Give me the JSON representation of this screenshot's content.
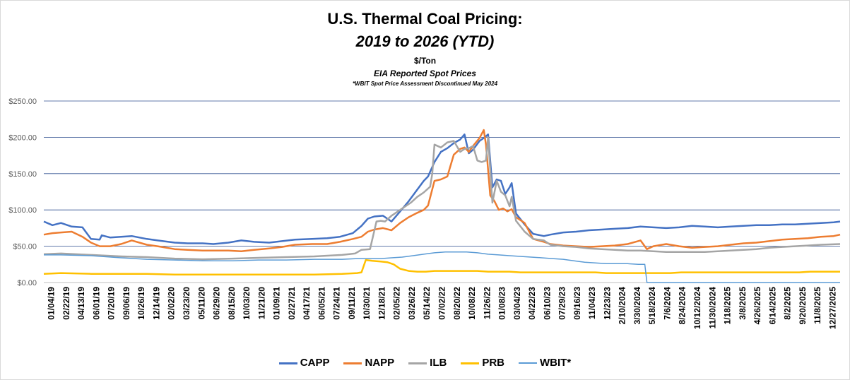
{
  "chart_data": {
    "type": "line",
    "title": "U.S. Thermal Coal Pricing:",
    "subtitle": "2019 to 2026 (YTD)",
    "unit": "$/Ton",
    "source_note": "EIA Reported Spot Prices",
    "footnote": "*WBIT Spot Price Assessment Discontinued May 2024",
    "ylim": [
      0,
      250
    ],
    "yticks": [
      "$0.00",
      "$50.00",
      "$100.00",
      "$150.00",
      "$200.00",
      "$250.00"
    ],
    "grid": true,
    "legend_position": "bottom",
    "xlim": [
      "2019-01-04",
      "2026-02-13"
    ],
    "x_tick_labels": [
      "01/04/19",
      "02/22/19",
      "04/13/19",
      "06/01/19",
      "07/20/19",
      "09/06/19",
      "10/26/19",
      "12/14/19",
      "02/02/20",
      "03/23/20",
      "05/11/20",
      "06/29/20",
      "08/15/20",
      "10/03/20",
      "11/21/20",
      "01/09/21",
      "02/27/21",
      "04/17/21",
      "06/05/21",
      "07/24/21",
      "09/11/21",
      "10/30/21",
      "12/18/21",
      "02/05/22",
      "03/26/22",
      "05/14/22",
      "07/02/22",
      "08/20/22",
      "10/08/22",
      "11/26/22",
      "01/08/23",
      "03/04/23",
      "04/22/23",
      "06/10/23",
      "07/29/23",
      "09/16/23",
      "11/04/23",
      "12/23/23",
      "2/10/2024",
      "3/30/2024",
      "5/18/2024",
      "7/6/2024",
      "8/24/2024",
      "10/12/2024",
      "11/30/2024",
      "1/18/2025",
      "3/8/2025",
      "4/26/2025",
      "6/14/2025",
      "8/2/2025",
      "9/20/2025",
      "11/8/2025",
      "12/27/2025"
    ],
    "series": [
      {
        "name": "CAPP",
        "color": "#4472C4",
        "width": 2.5,
        "x": [
          "2019-01-04",
          "2019-02-01",
          "2019-03-01",
          "2019-04-05",
          "2019-05-10",
          "2019-06-07",
          "2019-07-05",
          "2019-07-12",
          "2019-08-09",
          "2019-09-13",
          "2019-10-18",
          "2019-12-06",
          "2020-01-10",
          "2020-03-06",
          "2020-04-17",
          "2020-06-05",
          "2020-07-10",
          "2020-08-28",
          "2020-10-09",
          "2020-11-20",
          "2021-01-08",
          "2021-02-19",
          "2021-04-02",
          "2021-05-28",
          "2021-07-16",
          "2021-08-27",
          "2021-10-08",
          "2021-11-05",
          "2021-11-26",
          "2021-12-17",
          "2022-01-14",
          "2022-02-11",
          "2022-03-11",
          "2022-04-08",
          "2022-05-06",
          "2022-05-27",
          "2022-06-10",
          "2022-07-01",
          "2022-07-22",
          "2022-08-12",
          "2022-09-02",
          "2022-09-23",
          "2022-10-07",
          "2022-10-21",
          "2022-11-04",
          "2022-11-25",
          "2022-12-09",
          "2022-12-23",
          "2023-01-06",
          "2023-01-20",
          "2023-02-03",
          "2023-02-17",
          "2023-03-03",
          "2023-03-10",
          "2023-03-24",
          "2023-04-21",
          "2023-05-19",
          "2023-06-23",
          "2023-07-14",
          "2023-08-25",
          "2023-10-06",
          "2023-11-17",
          "2023-12-29",
          "2024-02-09",
          "2024-03-22",
          "2024-05-03",
          "2024-06-14",
          "2024-07-26",
          "2024-09-06",
          "2024-10-18",
          "2024-11-29",
          "2025-01-10",
          "2025-02-21",
          "2025-04-04",
          "2025-05-16",
          "2025-06-27",
          "2025-08-08",
          "2025-09-19",
          "2025-10-31",
          "2025-12-12",
          "2026-01-23",
          "2026-02-13"
        ],
        "y": [
          84,
          79,
          82,
          77,
          76,
          60,
          59,
          65,
          62,
          63,
          64,
          60,
          58,
          55,
          54,
          54,
          53,
          55,
          58,
          56,
          55,
          57,
          59,
          60,
          61,
          63,
          68,
          78,
          88,
          91,
          92,
          84,
          98,
          112,
          128,
          140,
          146,
          166,
          180,
          185,
          192,
          197,
          204,
          178,
          183,
          195,
          199,
          204,
          131,
          142,
          140,
          122,
          131,
          137,
          95,
          80,
          67,
          64,
          66,
          69,
          70,
          72,
          73,
          74,
          75,
          77,
          76,
          75,
          76,
          78,
          77,
          76,
          77,
          78,
          79,
          79,
          80,
          80,
          81,
          82,
          83,
          84
        ]
      },
      {
        "name": "NAPP",
        "color": "#ED7D31",
        "width": 2.5,
        "x": [
          "2019-01-04",
          "2019-02-01",
          "2019-03-01",
          "2019-04-05",
          "2019-05-10",
          "2019-06-07",
          "2019-07-05",
          "2019-08-09",
          "2019-09-13",
          "2019-10-18",
          "2019-12-06",
          "2020-01-10",
          "2020-03-06",
          "2020-04-17",
          "2020-06-05",
          "2020-08-28",
          "2020-10-09",
          "2020-11-20",
          "2021-01-08",
          "2021-02-19",
          "2021-04-02",
          "2021-05-28",
          "2021-07-16",
          "2021-08-27",
          "2021-10-08",
          "2021-11-05",
          "2021-11-26",
          "2021-12-17",
          "2022-01-14",
          "2022-02-11",
          "2022-03-11",
          "2022-04-08",
          "2022-05-06",
          "2022-05-27",
          "2022-06-10",
          "2022-07-01",
          "2022-07-22",
          "2022-08-12",
          "2022-09-02",
          "2022-09-23",
          "2022-10-07",
          "2022-10-21",
          "2022-11-04",
          "2022-11-25",
          "2022-12-09",
          "2022-12-16",
          "2022-12-30",
          "2023-01-13",
          "2023-01-27",
          "2023-02-10",
          "2023-02-24",
          "2023-03-10",
          "2023-03-24",
          "2023-04-21",
          "2023-05-19",
          "2023-06-23",
          "2023-07-14",
          "2023-08-25",
          "2023-10-06",
          "2023-11-17",
          "2023-12-29",
          "2024-02-09",
          "2024-03-22",
          "2024-05-03",
          "2024-05-24",
          "2024-06-14",
          "2024-07-26",
          "2024-09-06",
          "2024-10-18",
          "2024-11-29",
          "2025-01-10",
          "2025-02-21",
          "2025-04-04",
          "2025-05-16",
          "2025-06-27",
          "2025-08-08",
          "2025-09-19",
          "2025-10-31",
          "2025-12-12",
          "2026-01-23",
          "2026-02-13"
        ],
        "y": [
          66,
          68,
          69,
          70,
          63,
          55,
          50,
          50,
          53,
          58,
          52,
          50,
          46,
          45,
          44,
          44,
          43,
          45,
          47,
          49,
          52,
          53,
          53,
          56,
          60,
          63,
          70,
          73,
          75,
          72,
          82,
          90,
          96,
          100,
          106,
          140,
          142,
          146,
          176,
          184,
          186,
          180,
          188,
          199,
          210,
          190,
          120,
          112,
          100,
          102,
          98,
          101,
          90,
          82,
          60,
          56,
          53,
          51,
          50,
          49,
          50,
          51,
          53,
          58,
          46,
          50,
          53,
          50,
          48,
          49,
          50,
          52,
          54,
          55,
          57,
          59,
          60,
          61,
          63,
          64,
          66
        ]
      },
      {
        "name": "ILB",
        "color": "#A5A5A5",
        "width": 2.5,
        "x": [
          "2019-01-04",
          "2019-03-01",
          "2019-06-07",
          "2019-09-13",
          "2019-12-06",
          "2020-03-06",
          "2020-06-05",
          "2020-09-11",
          "2020-12-04",
          "2021-03-05",
          "2021-06-04",
          "2021-09-03",
          "2021-10-15",
          "2021-11-05",
          "2021-12-03",
          "2021-12-24",
          "2022-01-07",
          "2022-01-21",
          "2022-02-11",
          "2022-03-04",
          "2022-03-25",
          "2022-04-15",
          "2022-05-06",
          "2022-05-27",
          "2022-06-17",
          "2022-06-24",
          "2022-07-01",
          "2022-07-22",
          "2022-08-12",
          "2022-09-02",
          "2022-09-23",
          "2022-10-07",
          "2022-10-21",
          "2022-11-04",
          "2022-11-18",
          "2022-12-02",
          "2022-12-16",
          "2022-12-23",
          "2023-01-06",
          "2023-01-20",
          "2023-02-03",
          "2023-02-17",
          "2023-03-03",
          "2023-03-10",
          "2023-03-24",
          "2023-04-21",
          "2023-05-19",
          "2023-06-23",
          "2023-07-14",
          "2023-08-25",
          "2023-10-06",
          "2023-11-17",
          "2023-12-29",
          "2024-02-09",
          "2024-03-22",
          "2024-05-03",
          "2024-06-14",
          "2024-07-26",
          "2024-09-06",
          "2024-10-18",
          "2024-11-29",
          "2025-01-10",
          "2025-02-21",
          "2025-04-04",
          "2025-05-16",
          "2025-06-27",
          "2025-08-08",
          "2025-09-19",
          "2025-10-31",
          "2025-12-12",
          "2026-02-13"
        ],
        "y": [
          39,
          40,
          38,
          36,
          35,
          33,
          32,
          33,
          34,
          35,
          36,
          38,
          40,
          45,
          46,
          84,
          85,
          84,
          92,
          98,
          104,
          110,
          118,
          124,
          132,
          150,
          190,
          186,
          193,
          195,
          180,
          184,
          185,
          188,
          168,
          166,
          168,
          200,
          110,
          140,
          125,
          120,
          105,
          118,
          85,
          70,
          60,
          58,
          52,
          50,
          49,
          47,
          46,
          45,
          44,
          44,
          43,
          42,
          42,
          42,
          42,
          43,
          44,
          45,
          46,
          48,
          49,
          50,
          51,
          52,
          53
        ]
      },
      {
        "name": "PRB",
        "color": "#FFC000",
        "width": 2.5,
        "x": [
          "2019-01-04",
          "2019-03-01",
          "2019-06-07",
          "2019-09-13",
          "2019-12-06",
          "2020-03-06",
          "2020-06-05",
          "2020-09-11",
          "2020-12-04",
          "2021-03-05",
          "2021-06-04",
          "2021-09-03",
          "2021-10-22",
          "2021-11-05",
          "2021-11-19",
          "2021-12-10",
          "2022-01-07",
          "2022-01-28",
          "2022-02-18",
          "2022-03-11",
          "2022-04-08",
          "2022-05-06",
          "2022-06-03",
          "2022-07-01",
          "2022-08-05",
          "2022-09-09",
          "2022-10-14",
          "2022-11-18",
          "2022-12-23",
          "2023-01-27",
          "2023-03-03",
          "2023-04-07",
          "2023-05-12",
          "2023-06-16",
          "2023-07-21",
          "2023-08-25",
          "2023-09-29",
          "2023-11-03",
          "2023-12-08",
          "2024-01-12",
          "2024-02-16",
          "2024-03-22",
          "2024-04-26",
          "2024-05-31",
          "2024-07-05",
          "2024-08-09",
          "2024-09-13",
          "2024-10-18",
          "2024-11-22",
          "2024-12-27",
          "2025-01-31",
          "2025-03-07",
          "2025-04-11",
          "2025-05-16",
          "2025-06-20",
          "2025-07-25",
          "2025-08-29",
          "2025-10-03",
          "2025-11-07",
          "2025-12-12",
          "2026-01-16",
          "2026-02-13"
        ],
        "y": [
          12,
          13,
          12,
          12,
          12,
          11,
          11,
          11,
          11,
          11,
          11,
          12,
          13,
          14,
          31,
          30,
          29,
          28,
          25,
          19,
          16,
          15,
          15,
          16,
          16,
          16,
          16,
          16,
          15,
          15,
          15,
          14,
          14,
          14,
          14,
          14,
          14,
          14,
          14,
          13,
          13,
          13,
          13,
          13,
          13,
          13,
          14,
          14,
          14,
          14,
          14,
          14,
          14,
          14,
          14,
          14,
          14,
          14,
          15,
          15,
          15,
          15
        ]
      },
      {
        "name": "WBIT*",
        "color": "#5B9BD5",
        "width": 1.5,
        "x": [
          "2019-01-04",
          "2019-03-01",
          "2019-06-07",
          "2019-09-13",
          "2019-12-06",
          "2020-03-06",
          "2020-06-05",
          "2020-09-11",
          "2020-12-04",
          "2021-03-05",
          "2021-06-04",
          "2021-09-03",
          "2021-10-22",
          "2021-11-12",
          "2021-12-10",
          "2022-01-07",
          "2022-02-11",
          "2022-03-18",
          "2022-04-22",
          "2022-05-27",
          "2022-07-01",
          "2022-08-05",
          "2022-09-09",
          "2022-10-14",
          "2022-11-18",
          "2022-12-23",
          "2023-01-27",
          "2023-03-03",
          "2023-04-07",
          "2023-05-12",
          "2023-06-16",
          "2023-07-21",
          "2023-08-25",
          "2023-09-29",
          "2023-11-03",
          "2023-12-08",
          "2024-01-12",
          "2024-02-16",
          "2024-03-22",
          "2024-04-26",
          "2024-05-17",
          "2024-05-24",
          "2024-07-05",
          "2024-10-18",
          "2025-01-31",
          "2025-06-13",
          "2025-10-03",
          "2026-02-13"
        ],
        "y": [
          38,
          38,
          37,
          34,
          32,
          31,
          30,
          30,
          31,
          31,
          32,
          32,
          33,
          33,
          33,
          33,
          34,
          35,
          37,
          39,
          41,
          42,
          42,
          42,
          41,
          39,
          38,
          37,
          36,
          35,
          34,
          33,
          32,
          30,
          28,
          27,
          26,
          26,
          26,
          25,
          25,
          0,
          0,
          0,
          0,
          0,
          0,
          0
        ]
      }
    ]
  }
}
